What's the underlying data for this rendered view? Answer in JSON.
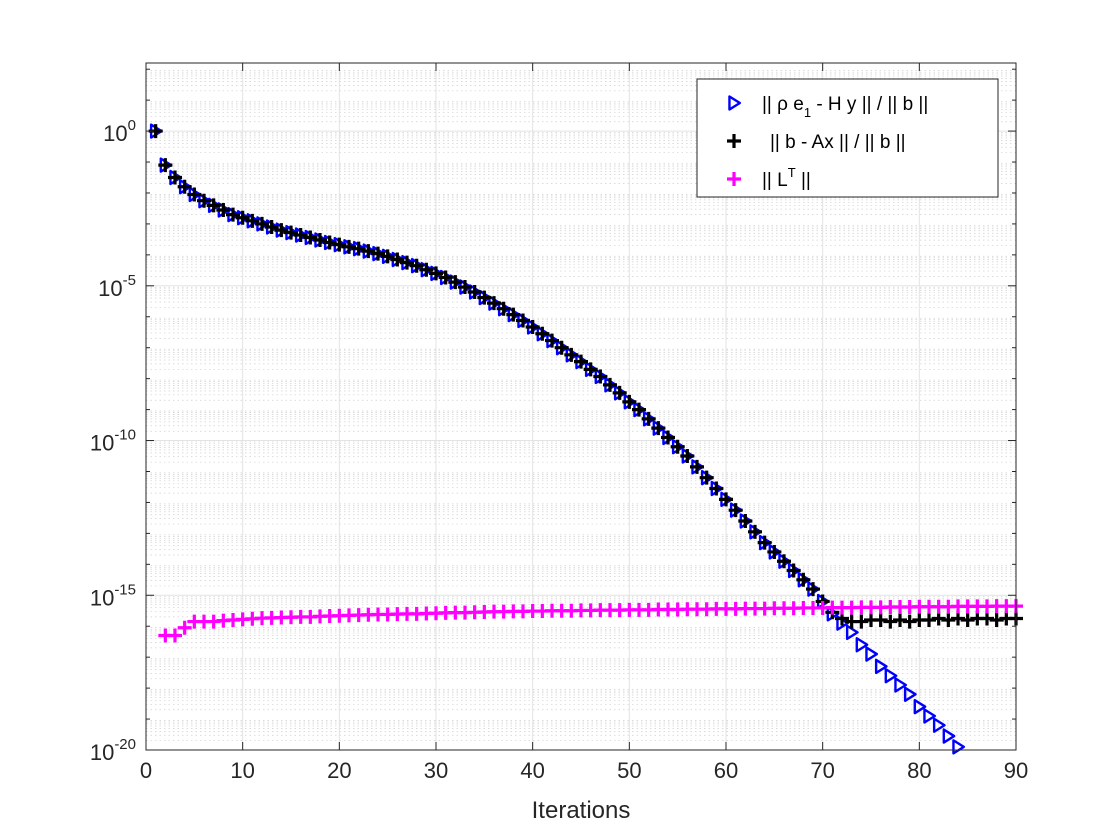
{
  "chart_data": {
    "type": "scatter",
    "title": "",
    "xlabel": "Iterations",
    "ylabel": "",
    "yscale": "log",
    "xlim": [
      0,
      90
    ],
    "ylim_exponent": [
      -20,
      2
    ],
    "grid": true,
    "minor_grid": true,
    "legend_position": "top-right",
    "x_ticks": [
      0,
      10,
      20,
      30,
      40,
      50,
      60,
      70,
      80,
      90
    ],
    "x_tick_labels": [
      "0",
      "10",
      "20",
      "30",
      "40",
      "50",
      "60",
      "70",
      "80",
      "90"
    ],
    "y_ticks_exponent": [
      0,
      -5,
      -10,
      -15,
      -20
    ],
    "y_tick_labels": [
      {
        "base": "10",
        "exp": "0"
      },
      {
        "base": "10",
        "exp": "-5"
      },
      {
        "base": "10",
        "exp": "-10"
      },
      {
        "base": "10",
        "exp": "-15"
      },
      {
        "base": "10",
        "exp": "-20"
      }
    ],
    "series": [
      {
        "name": "|| ρ e1 - H y || / || b ||",
        "legend_parts": {
          "pre": "|| ρ e",
          "sub": "1",
          "post": " - H y || / || b ||"
        },
        "marker": "triangle-right",
        "color": "#0000ff",
        "x": [
          1,
          2,
          3,
          4,
          5,
          6,
          7,
          8,
          9,
          10,
          11,
          12,
          13,
          14,
          15,
          16,
          17,
          18,
          19,
          20,
          21,
          22,
          23,
          24,
          25,
          26,
          27,
          28,
          29,
          30,
          31,
          32,
          33,
          34,
          35,
          36,
          37,
          38,
          39,
          40,
          41,
          42,
          43,
          44,
          45,
          46,
          47,
          48,
          49,
          50,
          51,
          52,
          53,
          54,
          55,
          56,
          57,
          58,
          59,
          60,
          61,
          62,
          63,
          64,
          65,
          66,
          67,
          68,
          69,
          70,
          71,
          72,
          73,
          74,
          75,
          76,
          77,
          78,
          79,
          80,
          81,
          82,
          83,
          84
        ],
        "y_exponent": [
          0,
          -1.1,
          -1.5,
          -1.8,
          -2.05,
          -2.25,
          -2.4,
          -2.55,
          -2.7,
          -2.8,
          -2.9,
          -3.0,
          -3.1,
          -3.2,
          -3.28,
          -3.36,
          -3.44,
          -3.52,
          -3.6,
          -3.67,
          -3.74,
          -3.8,
          -3.88,
          -3.96,
          -4.05,
          -4.15,
          -4.25,
          -4.35,
          -4.48,
          -4.6,
          -4.73,
          -4.88,
          -5.04,
          -5.2,
          -5.38,
          -5.56,
          -5.74,
          -5.93,
          -6.12,
          -6.33,
          -6.55,
          -6.77,
          -7.0,
          -7.23,
          -7.45,
          -7.7,
          -7.93,
          -8.2,
          -8.46,
          -8.75,
          -9.0,
          -9.3,
          -9.6,
          -9.9,
          -10.2,
          -10.5,
          -10.85,
          -11.2,
          -11.55,
          -11.9,
          -12.25,
          -12.6,
          -12.95,
          -13.3,
          -13.6,
          -13.9,
          -14.2,
          -14.5,
          -14.8,
          -15.2,
          -15.6,
          -15.9,
          -16.2,
          -16.6,
          -16.9,
          -17.3,
          -17.6,
          -17.9,
          -18.2,
          -18.6,
          -18.9,
          -19.2,
          -19.55,
          -19.9
        ]
      },
      {
        "name": "|| b - Ax || / || b ||",
        "legend_parts": {
          "pre": " || b - Ax || / || b ||",
          "sub": "",
          "post": ""
        },
        "marker": "plus",
        "color": "#000000",
        "x": [
          1,
          2,
          3,
          4,
          5,
          6,
          7,
          8,
          9,
          10,
          11,
          12,
          13,
          14,
          15,
          16,
          17,
          18,
          19,
          20,
          21,
          22,
          23,
          24,
          25,
          26,
          27,
          28,
          29,
          30,
          31,
          32,
          33,
          34,
          35,
          36,
          37,
          38,
          39,
          40,
          41,
          42,
          43,
          44,
          45,
          46,
          47,
          48,
          49,
          50,
          51,
          52,
          53,
          54,
          55,
          56,
          57,
          58,
          59,
          60,
          61,
          62,
          63,
          64,
          65,
          66,
          67,
          68,
          69,
          70,
          71,
          72,
          73,
          74,
          75,
          76,
          77,
          78,
          79,
          80,
          81,
          82,
          83,
          84,
          85,
          86,
          87,
          88,
          89,
          90
        ],
        "y_exponent": [
          0,
          -1.1,
          -1.5,
          -1.8,
          -2.05,
          -2.25,
          -2.4,
          -2.55,
          -2.7,
          -2.8,
          -2.9,
          -3.0,
          -3.1,
          -3.2,
          -3.28,
          -3.36,
          -3.44,
          -3.52,
          -3.6,
          -3.67,
          -3.74,
          -3.8,
          -3.88,
          -3.96,
          -4.05,
          -4.15,
          -4.25,
          -4.35,
          -4.48,
          -4.6,
          -4.73,
          -4.88,
          -5.04,
          -5.2,
          -5.38,
          -5.56,
          -5.74,
          -5.93,
          -6.12,
          -6.33,
          -6.55,
          -6.77,
          -7.0,
          -7.23,
          -7.45,
          -7.7,
          -7.93,
          -8.2,
          -8.46,
          -8.75,
          -9.0,
          -9.3,
          -9.6,
          -9.9,
          -10.2,
          -10.5,
          -10.85,
          -11.2,
          -11.55,
          -11.9,
          -12.25,
          -12.6,
          -12.95,
          -13.3,
          -13.6,
          -13.9,
          -14.2,
          -14.5,
          -14.8,
          -15.2,
          -15.55,
          -15.75,
          -15.85,
          -15.85,
          -15.8,
          -15.8,
          -15.85,
          -15.8,
          -15.85,
          -15.8,
          -15.8,
          -15.75,
          -15.8,
          -15.75,
          -15.8,
          -15.75,
          -15.75,
          -15.8,
          -15.75,
          -15.75
        ]
      },
      {
        "name": "|| L^T ||",
        "legend_parts": {
          "pre": "|| L",
          "sup": "T",
          "post": " ||"
        },
        "marker": "plus",
        "color": "#ff00ff",
        "x": [
          2,
          3,
          4,
          5,
          6,
          7,
          8,
          9,
          10,
          11,
          12,
          13,
          14,
          15,
          16,
          17,
          18,
          19,
          20,
          21,
          22,
          23,
          24,
          25,
          26,
          27,
          28,
          29,
          30,
          31,
          32,
          33,
          34,
          35,
          36,
          37,
          38,
          39,
          40,
          41,
          42,
          43,
          44,
          45,
          46,
          47,
          48,
          49,
          50,
          51,
          52,
          53,
          54,
          55,
          56,
          57,
          58,
          59,
          60,
          61,
          62,
          63,
          64,
          65,
          66,
          67,
          68,
          69,
          70,
          71,
          72,
          73,
          74,
          75,
          76,
          77,
          78,
          79,
          80,
          81,
          82,
          83,
          84,
          85,
          86,
          87,
          88,
          89,
          90
        ],
        "y_exponent": [
          -16.3,
          -16.3,
          -16.05,
          -15.85,
          -15.85,
          -15.85,
          -15.82,
          -15.8,
          -15.78,
          -15.76,
          -15.74,
          -15.73,
          -15.72,
          -15.71,
          -15.7,
          -15.7,
          -15.68,
          -15.67,
          -15.66,
          -15.65,
          -15.64,
          -15.63,
          -15.62,
          -15.62,
          -15.61,
          -15.6,
          -15.6,
          -15.59,
          -15.58,
          -15.57,
          -15.56,
          -15.56,
          -15.55,
          -15.54,
          -15.53,
          -15.53,
          -15.52,
          -15.52,
          -15.51,
          -15.51,
          -15.5,
          -15.5,
          -15.5,
          -15.49,
          -15.49,
          -15.48,
          -15.48,
          -15.48,
          -15.47,
          -15.47,
          -15.47,
          -15.46,
          -15.46,
          -15.46,
          -15.45,
          -15.45,
          -15.45,
          -15.44,
          -15.44,
          -15.44,
          -15.43,
          -15.43,
          -15.43,
          -15.42,
          -15.42,
          -15.42,
          -15.41,
          -15.41,
          -15.41,
          -15.4,
          -15.4,
          -15.4,
          -15.39,
          -15.39,
          -15.39,
          -15.38,
          -15.38,
          -15.38,
          -15.37,
          -15.37,
          -15.37,
          -15.37,
          -15.36,
          -15.36,
          -15.36,
          -15.36,
          -15.35,
          -15.35,
          -15.35
        ]
      }
    ]
  }
}
